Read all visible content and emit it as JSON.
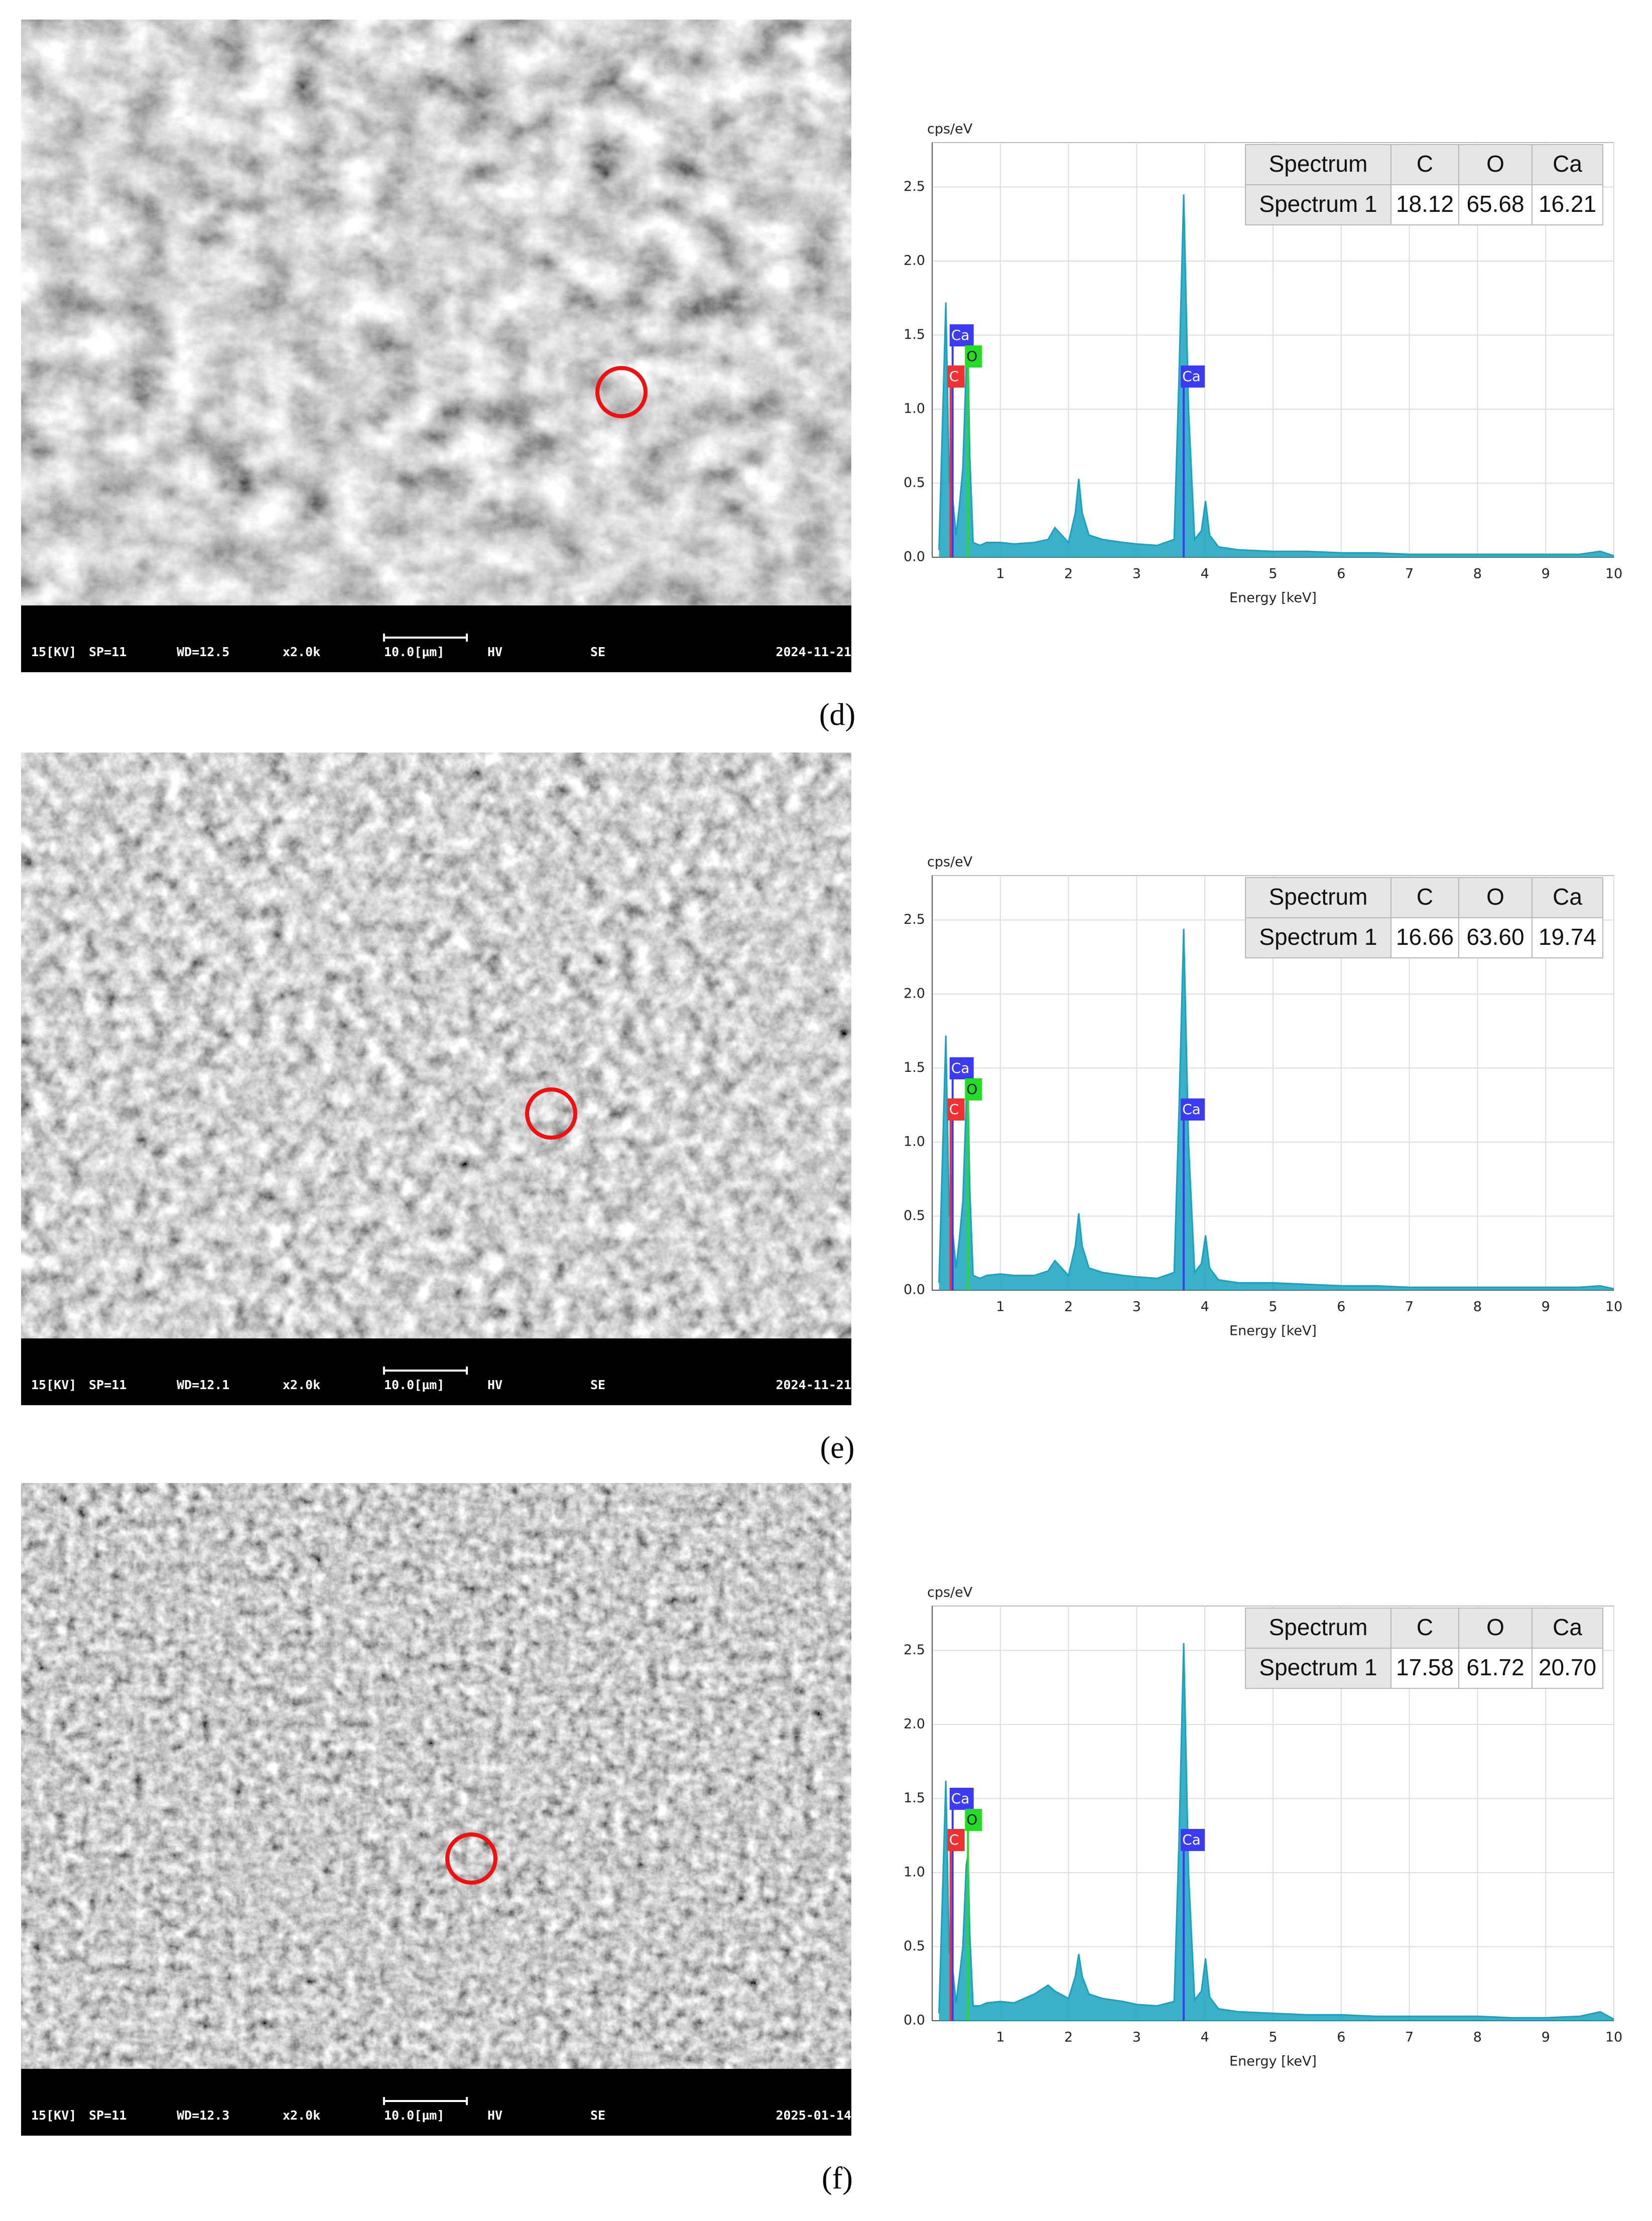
{
  "chart_data": [
    {
      "type": "area",
      "color": "#17a2c0",
      "y_label": "cps/eV",
      "x_label": "Energy [keV]",
      "xlim": [
        0,
        10
      ],
      "xticks": [
        1,
        2,
        3,
        4,
        5,
        6,
        7,
        8,
        9,
        10
      ],
      "ylim": [
        0,
        2.8
      ],
      "yticks": [
        {
          "value": 0,
          "label": "0.0"
        },
        0.5,
        {
          "value": 1,
          "label": "1.0"
        },
        1.5,
        {
          "value": 2,
          "label": "2.0"
        },
        2.5
      ],
      "grid": true,
      "x": [
        0.1,
        0.2,
        0.25,
        0.28,
        0.3,
        0.35,
        0.4,
        0.45,
        0.5,
        0.525,
        0.55,
        0.6,
        0.7,
        0.8,
        1.0,
        1.2,
        1.5,
        1.7,
        1.8,
        2.0,
        2.1,
        2.15,
        2.2,
        2.3,
        2.5,
        2.8,
        3.0,
        3.3,
        3.55,
        3.62,
        3.69,
        3.76,
        3.85,
        3.95,
        4.01,
        4.07,
        4.2,
        4.5,
        5,
        5.5,
        6,
        6.5,
        7,
        7.5,
        8,
        8.5,
        9,
        9.5,
        9.8,
        10
      ],
      "series": [
        {
          "values": [
            0.05,
            1.72,
            0.5,
            0.8,
            0.4,
            0.15,
            0.35,
            0.6,
            1.3,
            1.38,
            0.7,
            0.1,
            0.08,
            0.1,
            0.1,
            0.09,
            0.1,
            0.12,
            0.2,
            0.1,
            0.3,
            0.53,
            0.3,
            0.15,
            0.12,
            0.1,
            0.09,
            0.08,
            0.12,
            1.2,
            2.45,
            1.0,
            0.12,
            0.18,
            0.38,
            0.15,
            0.07,
            0.05,
            0.04,
            0.04,
            0.03,
            0.03,
            0.02,
            0.02,
            0.02,
            0.02,
            0.02,
            0.02,
            0.04,
            0.01
          ]
        }
      ],
      "element_lines": [
        {
          "label": "Ca",
          "x": 0.3,
          "color": "#3b3bf5"
        },
        {
          "label": "C",
          "x": 0.27,
          "color": "#f03030"
        },
        {
          "label": "O",
          "x": 0.525,
          "color": "#22dd22"
        },
        {
          "label": "Ca",
          "x": 3.69,
          "color": "#3b3bf5"
        }
      ],
      "table": {
        "header": [
          "Spectrum",
          "C",
          "O",
          "Ca"
        ],
        "rows": [
          [
            "Spectrum 1",
            "18.12",
            "65.68",
            "16.21"
          ]
        ]
      }
    },
    {
      "type": "area",
      "color": "#17a2c0",
      "y_label": "cps/eV",
      "x_label": "Energy [keV]",
      "xlim": [
        0,
        10
      ],
      "xticks": [
        1,
        2,
        3,
        4,
        5,
        6,
        7,
        8,
        9,
        10
      ],
      "ylim": [
        0,
        2.8
      ],
      "yticks": [
        {
          "value": 0,
          "label": "0.0"
        },
        0.5,
        {
          "value": 1,
          "label": "1.0"
        },
        1.5,
        {
          "value": 2,
          "label": "2.0"
        },
        2.5
      ],
      "grid": true,
      "x": [
        0.1,
        0.2,
        0.25,
        0.28,
        0.3,
        0.35,
        0.4,
        0.45,
        0.5,
        0.525,
        0.55,
        0.6,
        0.7,
        0.8,
        1.0,
        1.2,
        1.5,
        1.7,
        1.8,
        2.0,
        2.1,
        2.15,
        2.2,
        2.3,
        2.5,
        2.8,
        3.0,
        3.3,
        3.55,
        3.62,
        3.69,
        3.76,
        3.85,
        3.95,
        4.01,
        4.07,
        4.2,
        4.5,
        5,
        5.5,
        6,
        6.5,
        7,
        7.5,
        8,
        8.5,
        9,
        9.5,
        9.8,
        10
      ],
      "series": [
        {
          "values": [
            0.05,
            1.72,
            0.5,
            0.78,
            0.4,
            0.15,
            0.35,
            0.6,
            1.28,
            1.36,
            0.7,
            0.1,
            0.08,
            0.1,
            0.11,
            0.1,
            0.1,
            0.13,
            0.2,
            0.1,
            0.3,
            0.52,
            0.3,
            0.15,
            0.12,
            0.1,
            0.09,
            0.08,
            0.12,
            1.2,
            2.44,
            1.0,
            0.12,
            0.18,
            0.37,
            0.15,
            0.07,
            0.05,
            0.05,
            0.04,
            0.03,
            0.03,
            0.02,
            0.02,
            0.02,
            0.02,
            0.02,
            0.02,
            0.03,
            0.01
          ]
        }
      ],
      "element_lines": [
        {
          "label": "Ca",
          "x": 0.3,
          "color": "#3b3bf5"
        },
        {
          "label": "C",
          "x": 0.27,
          "color": "#f03030"
        },
        {
          "label": "O",
          "x": 0.525,
          "color": "#22dd22"
        },
        {
          "label": "Ca",
          "x": 3.69,
          "color": "#3b3bf5"
        }
      ],
      "table": {
        "header": [
          "Spectrum",
          "C",
          "O",
          "Ca"
        ],
        "rows": [
          [
            "Spectrum 1",
            "16.66",
            "63.60",
            "19.74"
          ]
        ]
      }
    },
    {
      "type": "area",
      "color": "#17a2c0",
      "y_label": "cps/eV",
      "x_label": "Energy [keV]",
      "xlim": [
        0,
        10
      ],
      "xticks": [
        1,
        2,
        3,
        4,
        5,
        6,
        7,
        8,
        9,
        10
      ],
      "ylim": [
        0,
        2.8
      ],
      "yticks": [
        {
          "value": 0,
          "label": "0.0"
        },
        0.5,
        {
          "value": 1,
          "label": "1.0"
        },
        1.5,
        {
          "value": 2,
          "label": "2.0"
        },
        2.5
      ],
      "grid": true,
      "x": [
        0.1,
        0.2,
        0.25,
        0.28,
        0.3,
        0.35,
        0.4,
        0.45,
        0.5,
        0.525,
        0.55,
        0.6,
        0.7,
        0.8,
        1.0,
        1.2,
        1.5,
        1.7,
        1.8,
        2.0,
        2.1,
        2.15,
        2.2,
        2.3,
        2.5,
        2.8,
        3.0,
        3.3,
        3.55,
        3.62,
        3.69,
        3.76,
        3.85,
        3.95,
        4.01,
        4.07,
        4.2,
        4.5,
        5,
        5.5,
        6,
        6.5,
        7,
        7.5,
        8,
        8.5,
        9,
        9.5,
        9.8,
        10
      ],
      "series": [
        {
          "values": [
            0.05,
            1.62,
            0.45,
            0.7,
            0.35,
            0.12,
            0.3,
            0.5,
            1.05,
            1.12,
            0.6,
            0.1,
            0.1,
            0.12,
            0.13,
            0.12,
            0.18,
            0.24,
            0.2,
            0.15,
            0.3,
            0.45,
            0.3,
            0.18,
            0.15,
            0.13,
            0.11,
            0.1,
            0.13,
            1.2,
            2.55,
            1.0,
            0.14,
            0.2,
            0.42,
            0.16,
            0.08,
            0.06,
            0.05,
            0.04,
            0.04,
            0.03,
            0.03,
            0.03,
            0.03,
            0.02,
            0.02,
            0.03,
            0.06,
            0.01
          ]
        }
      ],
      "element_lines": [
        {
          "label": "Ca",
          "x": 0.3,
          "color": "#3b3bf5"
        },
        {
          "label": "C",
          "x": 0.27,
          "color": "#f03030"
        },
        {
          "label": "O",
          "x": 0.525,
          "color": "#22dd22"
        },
        {
          "label": "Ca",
          "x": 3.69,
          "color": "#3b3bf5"
        }
      ],
      "table": {
        "header": [
          "Spectrum",
          "C",
          "O",
          "Ca"
        ],
        "rows": [
          [
            "Spectrum 1",
            "17.58",
            "61.72",
            "20.70"
          ]
        ]
      }
    }
  ],
  "sem_images": [
    {
      "info": [
        "15[KV]",
        "SP=11",
        "WD=12.5",
        "x2.0k",
        "10.0[µm]",
        "HV",
        "SE",
        "2024-11-21"
      ]
    },
    {
      "info": [
        "15[KV]",
        "SP=11",
        "WD=12.1",
        "x2.0k",
        "10.0[µm]",
        "HV",
        "SE",
        "2024-11-21"
      ]
    },
    {
      "info": [
        "15[KV]",
        "SP=11",
        "WD=12.3",
        "x2.0k",
        "10.0[µm]",
        "HV",
        "SE",
        "2025-01-14"
      ]
    }
  ],
  "panel_labels": [
    "(d)",
    "(e)",
    "(f)"
  ]
}
